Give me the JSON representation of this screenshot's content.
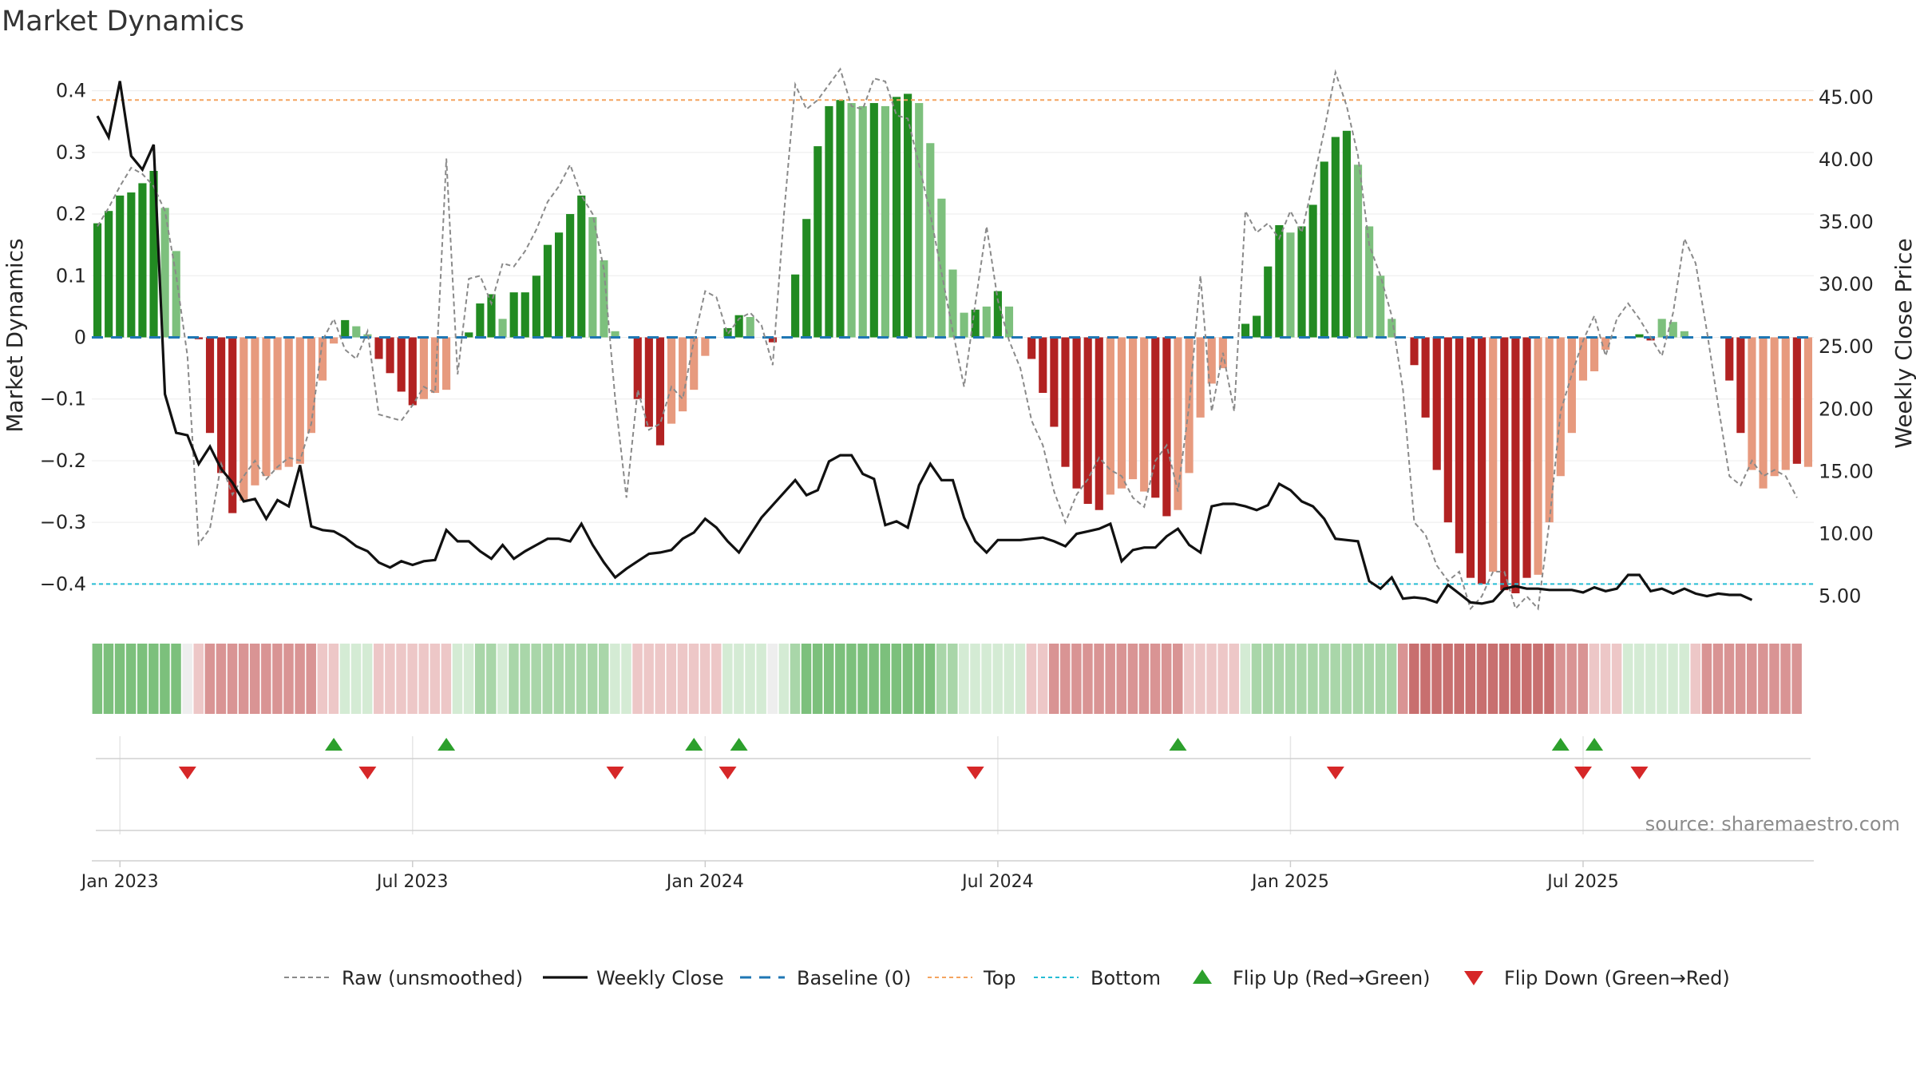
{
  "chart_data": {
    "type": "bar",
    "title": "Market Dynamics",
    "ylabel": "Market Dynamics",
    "y2label": "Weekly Close Price",
    "ylim": [
      -0.45,
      0.45
    ],
    "y2lim": [
      3.5,
      48.0
    ],
    "y_ticks": [
      0.4,
      0.3,
      0.2,
      0.1,
      0,
      -0.1,
      -0.2,
      -0.3,
      -0.4
    ],
    "y_tick_labels": [
      "0.4",
      "0.3",
      "0.2",
      "0.1",
      "0",
      "−0.1",
      "−0.2",
      "−0.3",
      "−0.4"
    ],
    "y2_ticks": [
      45,
      40,
      35,
      30,
      25,
      20,
      15,
      10,
      5
    ],
    "y2_tick_labels": [
      "45.00",
      "40.00",
      "35.00",
      "30.00",
      "25.00",
      "20.00",
      "15.00",
      "10.00",
      "5.00"
    ],
    "x_ticks": [
      {
        "week": 2,
        "label": "Jan 2023"
      },
      {
        "week": 28,
        "label": "Jul 2023"
      },
      {
        "week": 54,
        "label": "Jan 2024"
      },
      {
        "week": 80,
        "label": "Jul 2024"
      },
      {
        "week": 106,
        "label": "Jan 2025"
      },
      {
        "week": 132,
        "label": "Jul 2025"
      }
    ],
    "top_line": 0.385,
    "bottom_line": -0.4,
    "baseline": 0,
    "bars": [
      0.185,
      0.205,
      0.23,
      0.235,
      0.25,
      0.27,
      0.21,
      0.14,
      0,
      -0.003,
      -0.155,
      -0.22,
      -0.285,
      -0.265,
      -0.24,
      -0.225,
      -0.215,
      -0.21,
      -0.205,
      -0.155,
      -0.07,
      -0.01,
      0.028,
      0.018,
      0.005,
      -0.035,
      -0.058,
      -0.088,
      -0.11,
      -0.1,
      -0.09,
      -0.085,
      0,
      0.008,
      0.055,
      0.07,
      0.03,
      0.073,
      0.073,
      0.1,
      0.15,
      0.17,
      0.2,
      0.23,
      0.195,
      0.125,
      0.01,
      0,
      -0.1,
      -0.145,
      -0.175,
      -0.14,
      -0.12,
      -0.085,
      -0.03,
      0,
      0.015,
      0.036,
      0.033,
      0,
      -0.008,
      0,
      0.102,
      0.192,
      0.31,
      0.375,
      0.385,
      0.38,
      0.375,
      0.38,
      0.375,
      0.39,
      0.395,
      0.38,
      0.315,
      0.225,
      0.11,
      0.04,
      0.045,
      0.05,
      0.075,
      0.05,
      0,
      -0.035,
      -0.09,
      -0.145,
      -0.21,
      -0.245,
      -0.27,
      -0.28,
      -0.255,
      -0.245,
      -0.23,
      -0.25,
      -0.26,
      -0.29,
      -0.28,
      -0.22,
      -0.13,
      -0.075,
      -0.05,
      0,
      0.022,
      0.035,
      0.115,
      0.182,
      0.17,
      0.18,
      0.215,
      0.285,
      0.325,
      0.335,
      0.28,
      0.18,
      0.1,
      0.03,
      0,
      -0.045,
      -0.13,
      -0.215,
      -0.3,
      -0.35,
      -0.39,
      -0.4,
      -0.38,
      -0.41,
      -0.415,
      -0.39,
      -0.385,
      -0.3,
      -0.225,
      -0.155,
      -0.07,
      -0.055,
      -0.02,
      0,
      0,
      0.005,
      -0.005,
      0.03,
      0.025,
      0.01,
      0,
      0,
      0,
      -0.07,
      -0.155,
      -0.215,
      -0.245,
      -0.225,
      -0.215,
      -0.205,
      -0.21
    ],
    "bar_shades": [
      "dark",
      "dark",
      "dark",
      "dark",
      "dark",
      "dark",
      "light",
      "light",
      "light",
      "dark",
      "dark",
      "dark",
      "dark",
      "light",
      "light",
      "light",
      "light",
      "light",
      "light",
      "light",
      "light",
      "light",
      "dark",
      "light",
      "light",
      "dark",
      "dark",
      "dark",
      "dark",
      "light",
      "light",
      "light",
      "dark",
      "dark",
      "dark",
      "dark",
      "light",
      "dark",
      "dark",
      "dark",
      "dark",
      "dark",
      "dark",
      "dark",
      "light",
      "light",
      "light",
      "dark",
      "dark",
      "dark",
      "dark",
      "light",
      "light",
      "light",
      "light",
      "dark",
      "dark",
      "dark",
      "light",
      "dark",
      "dark",
      "dark",
      "dark",
      "dark",
      "dark",
      "dark",
      "dark",
      "light",
      "light",
      "dark",
      "light",
      "dark",
      "dark",
      "light",
      "light",
      "light",
      "light",
      "light",
      "dark",
      "light",
      "dark",
      "light",
      "dark",
      "dark",
      "dark",
      "dark",
      "dark",
      "dark",
      "dark",
      "dark",
      "light",
      "light",
      "light",
      "light",
      "dark",
      "dark",
      "light",
      "light",
      "light",
      "light",
      "light",
      "dark",
      "dark",
      "dark",
      "dark",
      "dark",
      "light",
      "dark",
      "dark",
      "dark",
      "dark",
      "dark",
      "light",
      "light",
      "light",
      "light",
      "light",
      "dark",
      "dark",
      "dark",
      "dark",
      "dark",
      "dark",
      "dark",
      "light",
      "dark",
      "dark",
      "dark",
      "light",
      "light",
      "light",
      "light",
      "light",
      "light",
      "light",
      "light",
      "dark",
      "dark",
      "dark",
      "light",
      "light",
      "light",
      "light",
      "dark",
      "dark",
      "dark",
      "dark",
      "light",
      "light",
      "light",
      "light",
      "dark"
    ],
    "raw": [
      0.18,
      0.21,
      0.245,
      0.275,
      0.265,
      0.245,
      0.205,
      0.1,
      -0.03,
      -0.335,
      -0.31,
      -0.205,
      -0.255,
      -0.225,
      -0.2,
      -0.23,
      -0.21,
      -0.195,
      -0.2,
      -0.14,
      -0.005,
      0.03,
      -0.02,
      -0.035,
      0.01,
      -0.125,
      -0.13,
      -0.135,
      -0.11,
      -0.08,
      -0.09,
      0.29,
      -0.06,
      0.095,
      0.1,
      0.055,
      0.12,
      0.115,
      0.14,
      0.175,
      0.22,
      0.245,
      0.28,
      0.23,
      0.2,
      0.11,
      -0.1,
      -0.26,
      -0.085,
      -0.15,
      -0.14,
      -0.08,
      -0.1,
      -0.005,
      0.075,
      0.065,
      0.005,
      0.03,
      0.04,
      0.02,
      -0.045,
      0.2,
      0.41,
      0.37,
      0.385,
      0.41,
      0.435,
      0.375,
      0.37,
      0.42,
      0.415,
      0.36,
      0.355,
      0.28,
      0.2,
      0.105,
      0.01,
      -0.08,
      0.055,
      0.18,
      0.06,
      -0.005,
      -0.05,
      -0.135,
      -0.175,
      -0.25,
      -0.3,
      -0.255,
      -0.23,
      -0.195,
      -0.215,
      -0.225,
      -0.26,
      -0.275,
      -0.2,
      -0.175,
      -0.25,
      -0.11,
      0.1,
      -0.12,
      -0.025,
      -0.12,
      0.205,
      0.17,
      0.185,
      0.16,
      0.205,
      0.17,
      0.25,
      0.335,
      0.43,
      0.375,
      0.295,
      0.15,
      0.1,
      0.035,
      -0.085,
      -0.3,
      -0.32,
      -0.37,
      -0.395,
      -0.38,
      -0.44,
      -0.42,
      -0.38,
      -0.38,
      -0.44,
      -0.42,
      -0.44,
      -0.3,
      -0.12,
      -0.06,
      -0.005,
      0.035,
      -0.03,
      0.03,
      0.055,
      0.03,
      0.0,
      -0.03,
      0.04,
      0.16,
      0.12,
      0.01,
      -0.11,
      -0.225,
      -0.24,
      -0.2,
      -0.225,
      -0.215,
      -0.225,
      -0.26
    ],
    "close": [
      43.5,
      41.8,
      46.3,
      40.3,
      39.2,
      41.2,
      21.2,
      18.1,
      17.9,
      15.6,
      17.0,
      15.2,
      14.1,
      12.6,
      12.8,
      11.2,
      12.7,
      12.2,
      15.5,
      10.6,
      10.3,
      10.2,
      9.7,
      9.0,
      8.6,
      7.7,
      7.3,
      7.8,
      7.5,
      7.8,
      7.9,
      10.3,
      9.4,
      9.4,
      8.6,
      8.0,
      9.1,
      8.0,
      8.6,
      9.1,
      9.6,
      9.6,
      9.4,
      10.8,
      9.1,
      7.7,
      6.5,
      7.2,
      7.8,
      8.4,
      8.5,
      8.7,
      9.6,
      10.1,
      11.2,
      10.5,
      9.4,
      8.5,
      9.9,
      11.3,
      12.3,
      13.3,
      14.3,
      13.1,
      13.5,
      15.8,
      16.3,
      16.3,
      14.8,
      14.4,
      10.7,
      11.0,
      10.5,
      13.9,
      15.6,
      14.3,
      14.3,
      11.3,
      9.4,
      8.5,
      9.5,
      9.5,
      9.5,
      9.6,
      9.7,
      9.4,
      9.0,
      10.0,
      10.2,
      10.4,
      10.8,
      7.8,
      8.7,
      8.9,
      8.9,
      9.8,
      10.4,
      9.1,
      8.5,
      12.2,
      12.4,
      12.4,
      12.2,
      11.9,
      12.3,
      14.0,
      13.5,
      12.6,
      12.2,
      11.2,
      9.6,
      9.5,
      9.4,
      6.2,
      5.6,
      6.5,
      4.8,
      4.9,
      4.8,
      4.5,
      5.9,
      5.2,
      4.5,
      4.4,
      4.6,
      5.6,
      5.8,
      5.6,
      5.6,
      5.5,
      5.5,
      5.5,
      5.3,
      5.7,
      5.4,
      5.6,
      6.7,
      6.7,
      5.4,
      5.6,
      5.2,
      5.6,
      5.2,
      5.0,
      5.2,
      5.1,
      5.1,
      4.7
    ],
    "color_band": [
      3,
      3,
      3,
      3,
      3,
      3,
      3,
      3,
      0,
      -1,
      -2,
      -2,
      -2,
      -2,
      -2,
      -2,
      -2,
      -2,
      -2,
      -2,
      -1,
      -1,
      1,
      1,
      1,
      -1,
      -1,
      -1,
      -1,
      -1,
      -1,
      -1,
      1,
      1,
      2,
      2,
      1,
      2,
      2,
      2,
      2,
      2,
      2,
      2,
      2,
      2,
      1,
      1,
      -1,
      -1,
      -1,
      -1,
      -1,
      -1,
      -1,
      -1,
      1,
      1,
      1,
      1,
      0,
      1,
      2,
      3,
      3,
      3,
      3,
      3,
      3,
      3,
      3,
      3,
      3,
      3,
      3,
      2,
      2,
      1,
      1,
      1,
      1,
      1,
      1,
      -1,
      -1,
      -2,
      -2,
      -2,
      -2,
      -2,
      -2,
      -2,
      -2,
      -2,
      -2,
      -2,
      -2,
      -1,
      -1,
      -1,
      -1,
      -1,
      1,
      2,
      2,
      2,
      2,
      2,
      2,
      2,
      2,
      2,
      2,
      2,
      2,
      2,
      -2,
      -3,
      -3,
      -3,
      -3,
      -3,
      -3,
      -3,
      -3,
      -3,
      -3,
      -3,
      -3,
      -3,
      -2,
      -2,
      -2,
      -1,
      -1,
      -1,
      1,
      1,
      1,
      1,
      1,
      1,
      -1,
      -2,
      -2,
      -2,
      -2,
      -2,
      -2,
      -2,
      -2,
      -2
    ],
    "flip_up": [
      21,
      31,
      53,
      57,
      96,
      130,
      133
    ],
    "flip_down": [
      8,
      24,
      46,
      56,
      78,
      110,
      132,
      137
    ],
    "legend": [
      "Raw (unsmoothed)",
      "Weekly Close",
      "Baseline (0)",
      "Top",
      "Bottom",
      "Flip Up (Red→Green)",
      "Flip Down (Green→Red)"
    ],
    "source": "source: sharemaestro.com"
  },
  "colors": {
    "green_dark": "#228b22",
    "green_light": "#7dc07d",
    "red_dark": "#b22222",
    "red_light": "#e79a7e",
    "top_line": "#f4a460",
    "bottom_line": "#25bcd4",
    "baseline": "#1f77b4",
    "close_line": "#111111",
    "raw_line": "#8a8a8a",
    "marker_up": "#2ca02c",
    "marker_down": "#d62728"
  }
}
